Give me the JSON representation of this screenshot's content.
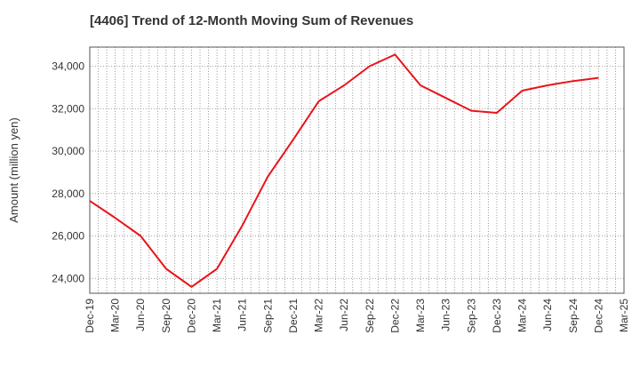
{
  "chart_data": {
    "type": "line",
    "title": "[4406]  Trend of 12-Month Moving Sum of Revenues",
    "xlabel": "",
    "ylabel": "Amount (million yen)",
    "x": [
      "Dec-19",
      "Mar-20",
      "Jun-20",
      "Sep-20",
      "Dec-20",
      "Mar-21",
      "Jun-21",
      "Sep-21",
      "Dec-21",
      "Mar-22",
      "Jun-22",
      "Sep-22",
      "Dec-22",
      "Mar-23",
      "Jun-23",
      "Sep-23",
      "Dec-23",
      "Mar-24",
      "Jun-24",
      "Sep-24",
      "Dec-24",
      "Mar-25"
    ],
    "series": [
      {
        "color": "#e8141b",
        "values": [
          27650,
          26850,
          26000,
          24450,
          23600,
          24450,
          26500,
          28800,
          30550,
          32350,
          33100,
          34000,
          34550,
          33100,
          32500,
          31900,
          31800,
          32850,
          33100,
          33300,
          33450,
          null
        ]
      }
    ],
    "ylim": [
      23300,
      34900
    ],
    "yticks": [
      24000,
      26000,
      28000,
      30000,
      32000,
      34000
    ],
    "ytick_labels": [
      "24,000",
      "26,000",
      "28,000",
      "30,000",
      "32,000",
      "34,000"
    ],
    "grid": true,
    "grid_style": "dotted",
    "legend": "none"
  }
}
